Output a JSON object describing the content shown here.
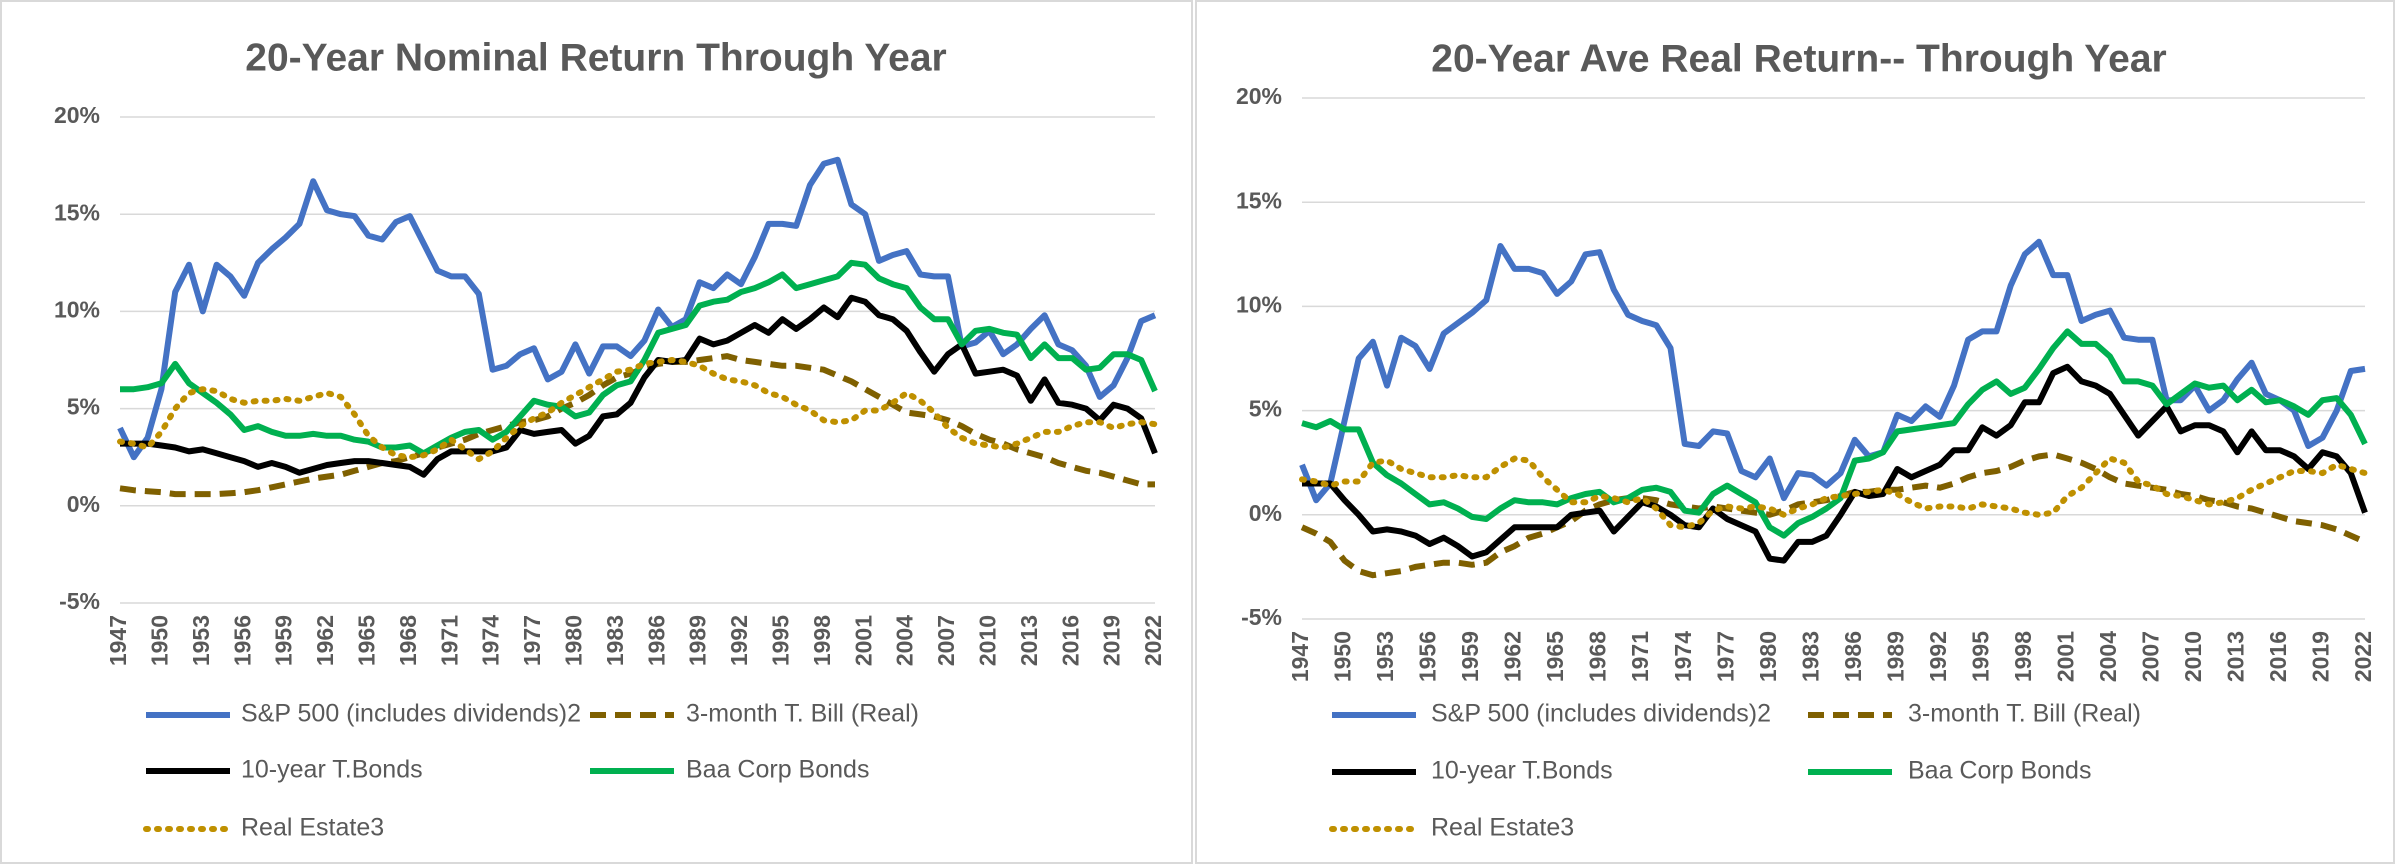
{
  "chart_data": [
    {
      "type": "line",
      "title": "20-Year Nominal Return Through Year",
      "x": [
        1947,
        1948,
        1949,
        1950,
        1951,
        1952,
        1953,
        1954,
        1955,
        1956,
        1957,
        1958,
        1959,
        1960,
        1961,
        1962,
        1963,
        1964,
        1965,
        1966,
        1967,
        1968,
        1969,
        1970,
        1971,
        1972,
        1973,
        1974,
        1975,
        1976,
        1977,
        1978,
        1979,
        1980,
        1981,
        1982,
        1983,
        1984,
        1985,
        1986,
        1987,
        1988,
        1989,
        1990,
        1991,
        1992,
        1993,
        1994,
        1995,
        1996,
        1997,
        1998,
        1999,
        2000,
        2001,
        2002,
        2003,
        2004,
        2005,
        2006,
        2007,
        2008,
        2009,
        2010,
        2011,
        2012,
        2013,
        2014,
        2015,
        2016,
        2017,
        2018,
        2019,
        2020,
        2021,
        2022
      ],
      "xlim": [
        1947,
        2022
      ],
      "xticks": [
        1947,
        1950,
        1953,
        1956,
        1959,
        1962,
        1965,
        1968,
        1971,
        1974,
        1977,
        1980,
        1983,
        1986,
        1989,
        1992,
        1995,
        1998,
        2001,
        2004,
        2007,
        2010,
        2013,
        2016,
        2019,
        2022
      ],
      "ylim": [
        -5,
        20
      ],
      "yticks": [
        {
          "value": -5,
          "label": "-5%"
        },
        {
          "value": 0,
          "label": "0%"
        },
        {
          "value": 5,
          "label": "5%"
        },
        {
          "value": 10,
          "label": "10%"
        },
        {
          "value": 15,
          "label": "15%"
        },
        {
          "value": 20,
          "label": "20%"
        }
      ],
      "grid": true,
      "series": [
        {
          "name": "S&P 500 (includes dividends)2",
          "color": "#4472c4",
          "style": "solid",
          "values": [
            4,
            2.5,
            3.5,
            6,
            11,
            12.4,
            10,
            12.4,
            11.8,
            10.8,
            12.5,
            13.2,
            13.8,
            14.5,
            16.7,
            15.2,
            15,
            14.9,
            13.9,
            13.7,
            14.6,
            14.9,
            13.5,
            12.1,
            11.8,
            11.8,
            10.9,
            7,
            7.2,
            7.8,
            8.1,
            6.5,
            6.9,
            8.3,
            6.8,
            8.2,
            8.2,
            7.7,
            8.5,
            10.1,
            9.2,
            9.6,
            11.5,
            11.2,
            11.9,
            11.4,
            12.8,
            14.5,
            14.5,
            14.4,
            16.5,
            17.6,
            17.8,
            15.5,
            15,
            12.6,
            12.9,
            13.1,
            11.9,
            11.8,
            11.8,
            8.2,
            8.4,
            9,
            7.8,
            8.3,
            9.1,
            9.8,
            8.3,
            8,
            7.2,
            5.6,
            6.2,
            7.6,
            9.5,
            9.8
          ]
        },
        {
          "name": "3-month T. Bill (Real)",
          "color": "#7f6000",
          "style": "dashed",
          "values": [
            0.9,
            0.8,
            0.75,
            0.7,
            0.6,
            0.6,
            0.6,
            0.6,
            0.65,
            0.7,
            0.8,
            0.95,
            1.1,
            1.25,
            1.4,
            1.5,
            1.6,
            1.8,
            2,
            2.2,
            2.3,
            2.5,
            2.7,
            3,
            3.2,
            3.4,
            3.7,
            3.9,
            4.1,
            4.3,
            4.4,
            4.6,
            5,
            5.3,
            5.7,
            6.2,
            6.6,
            6.8,
            7.1,
            7.3,
            7.4,
            7.4,
            7.5,
            7.6,
            7.7,
            7.5,
            7.4,
            7.3,
            7.2,
            7.2,
            7.1,
            7,
            6.7,
            6.4,
            6,
            5.6,
            5.2,
            4.8,
            4.7,
            4.6,
            4.4,
            4.1,
            3.7,
            3.4,
            3.2,
            2.9,
            2.7,
            2.5,
            2.2,
            2,
            1.8,
            1.7,
            1.5,
            1.3,
            1.1,
            1.1
          ]
        },
        {
          "name": "10-year T.Bonds",
          "color": "#000000",
          "style": "solid",
          "values": [
            3.2,
            3.2,
            3.2,
            3.1,
            3.0,
            2.8,
            2.9,
            2.7,
            2.5,
            2.3,
            2.0,
            2.2,
            2.0,
            1.7,
            1.9,
            2.1,
            2.2,
            2.3,
            2.3,
            2.2,
            2.1,
            2.0,
            1.6,
            2.4,
            2.8,
            2.8,
            2.8,
            2.8,
            3.0,
            3.9,
            3.7,
            3.8,
            3.9,
            3.2,
            3.6,
            4.6,
            4.7,
            5.3,
            6.6,
            7.5,
            7.4,
            7.5,
            8.6,
            8.3,
            8.5,
            8.9,
            9.3,
            8.9,
            9.6,
            9.1,
            9.6,
            10.2,
            9.7,
            10.7,
            10.5,
            9.8,
            9.6,
            9.0,
            7.9,
            6.9,
            7.8,
            8.3,
            6.8,
            6.9,
            7.0,
            6.7,
            5.4,
            6.5,
            5.3,
            5.2,
            5.0,
            4.4,
            5.2,
            5.0,
            4.5,
            2.7
          ]
        },
        {
          "name": "Baa Corp Bonds",
          "color": "#00b050",
          "style": "solid",
          "values": [
            6,
            6,
            6.1,
            6.3,
            7.3,
            6.3,
            5.8,
            5.3,
            4.7,
            3.9,
            4.1,
            3.8,
            3.6,
            3.6,
            3.7,
            3.6,
            3.6,
            3.4,
            3.3,
            3,
            3,
            3.1,
            2.7,
            3.1,
            3.5,
            3.8,
            3.9,
            3.4,
            3.8,
            4.6,
            5.4,
            5.2,
            5.1,
            4.6,
            4.8,
            5.7,
            6.2,
            6.4,
            7.5,
            8.9,
            9.1,
            9.3,
            10.3,
            10.5,
            10.6,
            11,
            11.2,
            11.5,
            11.9,
            11.2,
            11.4,
            11.6,
            11.8,
            12.5,
            12.4,
            11.7,
            11.4,
            11.2,
            10.2,
            9.6,
            9.6,
            8.3,
            9,
            9.1,
            8.9,
            8.8,
            7.6,
            8.3,
            7.6,
            7.6,
            7,
            7.1,
            7.8,
            7.8,
            7.5,
            5.9
          ]
        },
        {
          "name": "Real Estate3",
          "color": "#bf9000",
          "style": "dotted",
          "values": [
            3.3,
            3.2,
            3,
            3.8,
            5,
            5.8,
            6,
            5.9,
            5.5,
            5.3,
            5.4,
            5.4,
            5.5,
            5.4,
            5.6,
            5.8,
            5.6,
            4.7,
            3.6,
            3,
            2.6,
            2.5,
            2.6,
            2.9,
            3.4,
            2.9,
            2.4,
            2.8,
            3.5,
            4.1,
            4.5,
            4.8,
            5.3,
            5.7,
            6.1,
            6.5,
            6.9,
            7,
            7.3,
            7.4,
            7.5,
            7.4,
            7.2,
            6.8,
            6.5,
            6.4,
            6.2,
            5.8,
            5.6,
            5.2,
            4.9,
            4.4,
            4.3,
            4.4,
            4.9,
            4.9,
            5.3,
            5.8,
            5.4,
            4.8,
            4,
            3.5,
            3.2,
            3.1,
            3,
            3.2,
            3.5,
            3.8,
            3.8,
            4.1,
            4.3,
            4.3,
            4,
            4.2,
            4.3,
            4.2
          ]
        }
      ]
    },
    {
      "type": "line",
      "title": "20-Year Ave Real Return-- Through Year",
      "x": [
        1947,
        1948,
        1949,
        1950,
        1951,
        1952,
        1953,
        1954,
        1955,
        1956,
        1957,
        1958,
        1959,
        1960,
        1961,
        1962,
        1963,
        1964,
        1965,
        1966,
        1967,
        1968,
        1969,
        1970,
        1971,
        1972,
        1973,
        1974,
        1975,
        1976,
        1977,
        1978,
        1979,
        1980,
        1981,
        1982,
        1983,
        1984,
        1985,
        1986,
        1987,
        1988,
        1989,
        1990,
        1991,
        1992,
        1993,
        1994,
        1995,
        1996,
        1997,
        1998,
        1999,
        2000,
        2001,
        2002,
        2003,
        2004,
        2005,
        2006,
        2007,
        2008,
        2009,
        2010,
        2011,
        2012,
        2013,
        2014,
        2015,
        2016,
        2017,
        2018,
        2019,
        2020,
        2021,
        2022
      ],
      "xlim": [
        1947,
        2022
      ],
      "xticks": [
        1947,
        1950,
        1953,
        1956,
        1959,
        1962,
        1965,
        1968,
        1971,
        1974,
        1977,
        1980,
        1983,
        1986,
        1989,
        1992,
        1995,
        1998,
        2001,
        2004,
        2007,
        2010,
        2013,
        2016,
        2019,
        2022
      ],
      "ylim": [
        -5,
        20
      ],
      "yticks": [
        {
          "value": -5,
          "label": "-5%"
        },
        {
          "value": 0,
          "label": "0%"
        },
        {
          "value": 5,
          "label": "5%"
        },
        {
          "value": 10,
          "label": "10%"
        },
        {
          "value": 15,
          "label": "15%"
        },
        {
          "value": 20,
          "label": "20%"
        }
      ],
      "grid": true,
      "series": [
        {
          "name": "S&P 500 (includes dividends)2",
          "color": "#4472c4",
          "style": "solid",
          "values": [
            2.4,
            0.7,
            1.5,
            4.5,
            7.5,
            8.3,
            6.2,
            8.5,
            8.1,
            7,
            8.7,
            9.2,
            9.7,
            10.3,
            12.9,
            11.8,
            11.8,
            11.6,
            10.6,
            11.2,
            12.5,
            12.6,
            10.8,
            9.6,
            9.3,
            9.1,
            8,
            3.4,
            3.3,
            4,
            3.9,
            2.1,
            1.8,
            2.7,
            0.8,
            2,
            1.9,
            1.4,
            2,
            3.6,
            2.8,
            3,
            4.8,
            4.5,
            5.2,
            4.7,
            6.2,
            8.4,
            8.8,
            8.8,
            11,
            12.5,
            13.1,
            11.5,
            11.5,
            9.3,
            9.6,
            9.8,
            8.5,
            8.4,
            8.4,
            5.5,
            5.5,
            6.2,
            5,
            5.5,
            6.5,
            7.3,
            5.8,
            5.5,
            5,
            3.3,
            3.7,
            5,
            6.9,
            7
          ]
        },
        {
          "name": "3-month T. Bill (Real)",
          "color": "#7f6000",
          "style": "dashed",
          "values": [
            -0.6,
            -0.9,
            -1.3,
            -2.2,
            -2.7,
            -2.9,
            -2.8,
            -2.7,
            -2.5,
            -2.4,
            -2.3,
            -2.3,
            -2.4,
            -2.3,
            -1.8,
            -1.5,
            -1.1,
            -0.9,
            -0.6,
            -0.3,
            0.2,
            0.5,
            0.7,
            0.8,
            0.8,
            0.7,
            0.5,
            0.4,
            0.3,
            0.4,
            0.3,
            0.2,
            0.1,
            0,
            0.2,
            0.5,
            0.6,
            0.7,
            0.9,
            1.1,
            1.1,
            1.2,
            1.2,
            1.3,
            1.4,
            1.3,
            1.5,
            1.8,
            2,
            2.1,
            2.3,
            2.6,
            2.8,
            2.9,
            2.7,
            2.5,
            2.2,
            1.8,
            1.5,
            1.4,
            1.3,
            1.2,
            1,
            0.9,
            0.7,
            0.6,
            0.4,
            0.3,
            0.1,
            -0.1,
            -0.3,
            -0.4,
            -0.5,
            -0.7,
            -1,
            -1.3
          ]
        },
        {
          "name": "10-year T.Bonds",
          "color": "#000000",
          "style": "solid",
          "values": [
            1.5,
            1.5,
            1.5,
            0.7,
            0,
            -0.8,
            -0.7,
            -0.8,
            -1,
            -1.4,
            -1.1,
            -1.5,
            -2,
            -1.8,
            -1.2,
            -0.6,
            -0.6,
            -0.6,
            -0.6,
            0,
            0.1,
            0.2,
            -0.8,
            -0.1,
            0.6,
            0.4,
            0,
            -0.5,
            -0.6,
            0.3,
            -0.2,
            -0.5,
            -0.8,
            -2.1,
            -2.2,
            -1.3,
            -1.3,
            -1,
            0,
            1.1,
            0.9,
            1,
            2.2,
            1.8,
            2.1,
            2.4,
            3.1,
            3.1,
            4.2,
            3.8,
            4.3,
            5.4,
            5.4,
            6.8,
            7.1,
            6.4,
            6.2,
            5.8,
            4.8,
            3.8,
            4.5,
            5.2,
            4,
            4.3,
            4.3,
            4,
            3,
            4,
            3.1,
            3.1,
            2.8,
            2.2,
            3,
            2.8,
            2,
            0.1
          ]
        },
        {
          "name": "Baa Corp Bonds",
          "color": "#00b050",
          "style": "solid",
          "values": [
            4.4,
            4.2,
            4.5,
            4.1,
            4.1,
            2.5,
            1.9,
            1.5,
            1,
            0.5,
            0.6,
            0.3,
            -0.1,
            -0.2,
            0.3,
            0.7,
            0.6,
            0.6,
            0.5,
            0.8,
            1,
            1.1,
            0.6,
            0.8,
            1.2,
            1.3,
            1.1,
            0.2,
            0.1,
            1,
            1.4,
            1,
            0.6,
            -0.6,
            -1,
            -0.4,
            -0.1,
            0.3,
            0.8,
            2.6,
            2.7,
            3,
            4,
            4.1,
            4.2,
            4.3,
            4.4,
            5.3,
            6,
            6.4,
            5.8,
            6.1,
            7,
            8,
            8.8,
            8.2,
            8.2,
            7.6,
            6.4,
            6.4,
            6.2,
            5.3,
            5.8,
            6.3,
            6.1,
            6.2,
            5.5,
            6,
            5.4,
            5.5,
            5.2,
            4.8,
            5.5,
            5.6,
            4.8,
            3.4
          ]
        },
        {
          "name": "Real Estate3",
          "color": "#bf9000",
          "style": "dotted",
          "values": [
            1.7,
            1.6,
            1.4,
            1.6,
            1.6,
            2.5,
            2.6,
            2.2,
            2,
            1.8,
            1.8,
            1.9,
            1.8,
            1.8,
            2.3,
            2.7,
            2.6,
            1.8,
            1.2,
            0.6,
            0.6,
            0.9,
            0.8,
            0.6,
            0.8,
            0.3,
            -0.5,
            -0.6,
            -0.4,
            0.2,
            0.4,
            0.3,
            0.4,
            0.3,
            0,
            0.3,
            0.5,
            0.8,
            0.9,
            1,
            1.1,
            1.2,
            1,
            0.6,
            0.3,
            0.4,
            0.4,
            0.3,
            0.5,
            0.4,
            0.3,
            0.1,
            0,
            0.1,
            0.9,
            1.3,
            2,
            2.7,
            2.5,
            1.6,
            1.4,
            1,
            0.9,
            0.7,
            0.5,
            0.6,
            0.8,
            1.2,
            1.5,
            1.8,
            2.1,
            2.1,
            2,
            2.4,
            2.2,
            2
          ]
        }
      ]
    }
  ]
}
